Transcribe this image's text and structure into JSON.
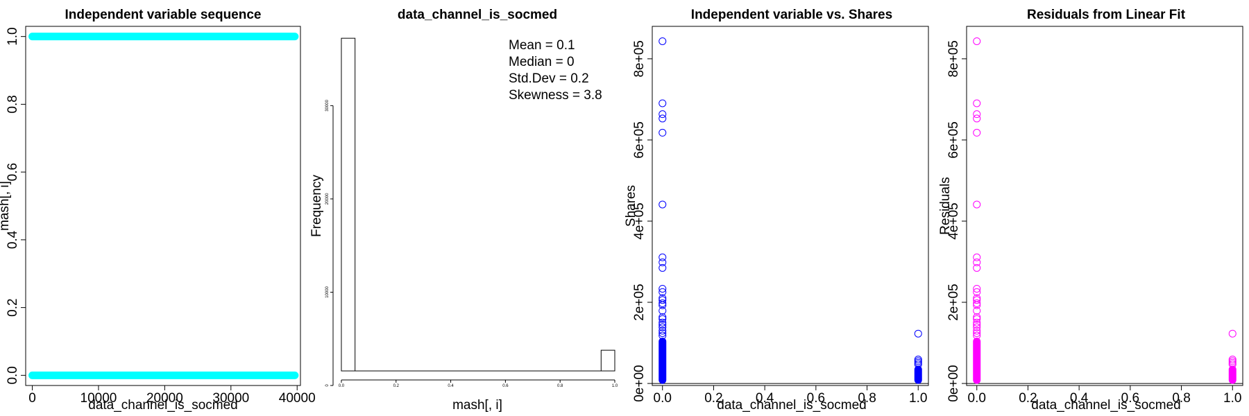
{
  "chart_data": [
    {
      "type": "scatter",
      "title": "Independent variable sequence",
      "xlabel": "data_channel_is_socmed",
      "ylabel": "mash[, i]",
      "xlim": [
        -1000,
        40500
      ],
      "ylim": [
        -0.03,
        1.03
      ],
      "xticks": [
        0,
        10000,
        20000,
        30000,
        40000
      ],
      "xtick_labels": [
        "0",
        "10000",
        "20000",
        "30000",
        "40000"
      ],
      "yticks": [
        0.0,
        0.2,
        0.4,
        0.6,
        0.8,
        1.0
      ],
      "ytick_labels": [
        "0.0",
        "0.2",
        "0.4",
        "0.6",
        "0.8",
        "1.0"
      ],
      "color": "#00FFFF",
      "series": [
        {
          "x_range": [
            0,
            39644
          ],
          "y": 1
        },
        {
          "x_range": [
            0,
            39644
          ],
          "y": 0
        }
      ]
    },
    {
      "type": "bar",
      "title": "data_channel_is_socmed",
      "xlabel": "mash[, i]",
      "ylabel": "Frequency",
      "xlim": [
        -0.005,
        1.0
      ],
      "ylim": [
        0,
        38500
      ],
      "xticks": [
        0.0,
        0.2,
        0.4,
        0.6,
        0.8,
        1.0
      ],
      "xtick_labels": [
        "0.0",
        "0.2",
        "0.4",
        "0.6",
        "0.8",
        "1.0"
      ],
      "yticks": [
        0,
        10000,
        20000,
        30000
      ],
      "ytick_labels": [
        "0",
        "10000",
        "20000",
        "30000"
      ],
      "bins": [
        {
          "x0": 0.0,
          "x1": 0.05,
          "count": 37321
        },
        {
          "x0": 0.95,
          "x1": 1.0,
          "count": 2323
        }
      ],
      "annotations": [
        "Mean = 0.1",
        "Median = 0",
        "Std.Dev = 0.2",
        "Skewness = 3.8"
      ]
    },
    {
      "type": "scatter",
      "title": "Independent variable vs. Shares",
      "xlabel": "data_channel_is_socmed",
      "ylabel": "Shares",
      "xlim": [
        -0.04,
        1.04
      ],
      "ylim": [
        -5000,
        880000
      ],
      "xticks": [
        0.0,
        0.2,
        0.4,
        0.6,
        0.8,
        1.0
      ],
      "xtick_labels": [
        "0.0",
        "0.2",
        "0.4",
        "0.6",
        "0.8",
        "1.0"
      ],
      "yticks": [
        0,
        200000,
        400000,
        600000,
        800000
      ],
      "ytick_labels": [
        "0e+00",
        "2e+05",
        "4e+05",
        "6e+05",
        "8e+05"
      ],
      "hline": 0,
      "color": "#0000FF",
      "points": [
        {
          "x": 0,
          "y": 843300
        },
        {
          "x": 0,
          "y": 690400
        },
        {
          "x": 0,
          "y": 663600
        },
        {
          "x": 0,
          "y": 652900
        },
        {
          "x": 0,
          "y": 617900
        },
        {
          "x": 0,
          "y": 441000
        },
        {
          "x": 0,
          "y": 310800
        },
        {
          "x": 0,
          "y": 298400
        },
        {
          "x": 0,
          "y": 284700
        },
        {
          "x": 0,
          "y": 233400
        },
        {
          "x": 0,
          "y": 225300
        },
        {
          "x": 0,
          "y": 210300
        },
        {
          "x": 0,
          "y": 205600
        },
        {
          "x": 0,
          "y": 197600
        },
        {
          "x": 0,
          "y": 192800
        },
        {
          "x": 0,
          "y": 179100
        },
        {
          "x": 0,
          "y": 163500
        },
        {
          "x": 0,
          "y": 158900
        },
        {
          "x": 0,
          "y": 150000
        },
        {
          "x": 0,
          "y": 144500
        },
        {
          "x": 0,
          "y": 138500
        },
        {
          "x": 0,
          "y": 130000
        },
        {
          "x": 0,
          "y": 124000
        },
        {
          "x": 0,
          "y": 118000
        },
        {
          "x": 1,
          "y": 122800
        },
        {
          "x": 1,
          "y": 59000
        },
        {
          "x": 1,
          "y": 55000
        },
        {
          "x": 1,
          "y": 51000
        },
        {
          "x": 1,
          "y": 47000
        }
      ],
      "dense_bands": [
        {
          "x": 0,
          "y_range": [
            0,
            112000
          ]
        },
        {
          "x": 1,
          "y_range": [
            0,
            43000
          ]
        }
      ]
    },
    {
      "type": "scatter",
      "title": "Residuals from Linear Fit",
      "xlabel": "data_channel_is_socmed",
      "ylabel": "Residuals",
      "xlim": [
        -0.04,
        1.04
      ],
      "ylim": [
        -5000,
        880000
      ],
      "xticks": [
        0.0,
        0.2,
        0.4,
        0.6,
        0.8,
        1.0
      ],
      "xtick_labels": [
        "0.0",
        "0.2",
        "0.4",
        "0.6",
        "0.8",
        "1.0"
      ],
      "yticks": [
        0,
        200000,
        400000,
        600000,
        800000
      ],
      "ytick_labels": [
        "0e+00",
        "2e+05",
        "4e+05",
        "6e+05",
        "8e+05"
      ],
      "hline": 0,
      "color": "#FF00FF",
      "points": [
        {
          "x": 0,
          "y": 843300
        },
        {
          "x": 0,
          "y": 690400
        },
        {
          "x": 0,
          "y": 663600
        },
        {
          "x": 0,
          "y": 652900
        },
        {
          "x": 0,
          "y": 617900
        },
        {
          "x": 0,
          "y": 441000
        },
        {
          "x": 0,
          "y": 310800
        },
        {
          "x": 0,
          "y": 298400
        },
        {
          "x": 0,
          "y": 284700
        },
        {
          "x": 0,
          "y": 233400
        },
        {
          "x": 0,
          "y": 225300
        },
        {
          "x": 0,
          "y": 210300
        },
        {
          "x": 0,
          "y": 205600
        },
        {
          "x": 0,
          "y": 197600
        },
        {
          "x": 0,
          "y": 192800
        },
        {
          "x": 0,
          "y": 179100
        },
        {
          "x": 0,
          "y": 163500
        },
        {
          "x": 0,
          "y": 158900
        },
        {
          "x": 0,
          "y": 150000
        },
        {
          "x": 0,
          "y": 144500
        },
        {
          "x": 0,
          "y": 138500
        },
        {
          "x": 0,
          "y": 130000
        },
        {
          "x": 0,
          "y": 124000
        },
        {
          "x": 0,
          "y": 118000
        },
        {
          "x": 1,
          "y": 122800
        },
        {
          "x": 1,
          "y": 59000
        },
        {
          "x": 1,
          "y": 55000
        },
        {
          "x": 1,
          "y": 51000
        },
        {
          "x": 1,
          "y": 47000
        }
      ],
      "dense_bands": [
        {
          "x": 0,
          "y_range": [
            0,
            112000
          ]
        },
        {
          "x": 1,
          "y_range": [
            0,
            43000
          ]
        }
      ]
    }
  ]
}
